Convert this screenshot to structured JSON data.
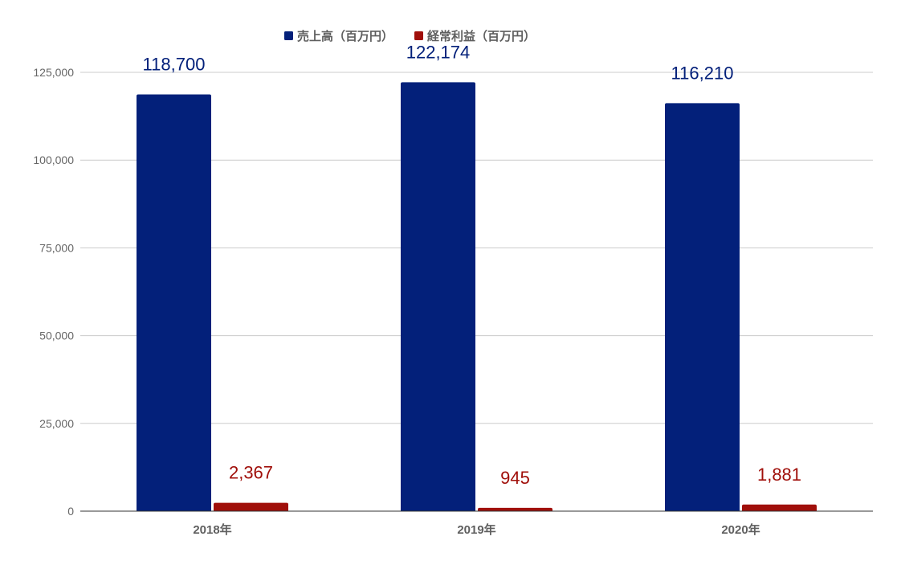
{
  "chart_data": {
    "type": "bar",
    "categories": [
      "2018年",
      "2019年",
      "2020年"
    ],
    "series": [
      {
        "name": "売上高（百万円）",
        "values": [
          118700,
          122174,
          116210
        ],
        "labels": [
          "118,700",
          "122,174",
          "116,210"
        ],
        "color": "#03207a",
        "label_color": "#03207a"
      },
      {
        "name": "経常利益（百万円）",
        "values": [
          2367,
          945,
          1881
        ],
        "labels": [
          "2,367",
          "945",
          "1,881"
        ],
        "color": "#a00f0a",
        "label_color": "#a00f0a"
      }
    ],
    "yticks": [
      0,
      25000,
      50000,
      75000,
      100000,
      125000
    ],
    "ytick_labels": [
      "0",
      "25,000",
      "50,000",
      "75,000",
      "100,000",
      "125,000"
    ],
    "ylim": [
      0,
      125000
    ],
    "grid": true,
    "legend_position": "top-center",
    "title": "",
    "xlabel": "",
    "ylabel": ""
  },
  "colors": {
    "grid": "#cccccc",
    "baseline": "#333333",
    "tick_text": "#666666",
    "category_text": "#5f5f5f"
  }
}
